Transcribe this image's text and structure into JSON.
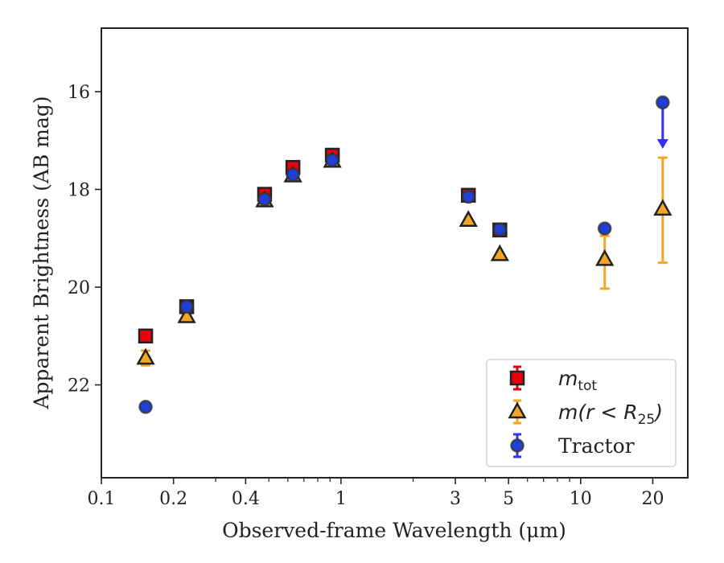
{
  "chart_data": {
    "type": "scatter",
    "xlabel": "Observed-frame Wavelength (μm)",
    "ylabel": "Apparent Brightness (AB mag)",
    "xscale": "log",
    "xlim": [
      0.1,
      28
    ],
    "ylim": [
      23.9,
      14.7
    ],
    "y_inverted": true,
    "x_ticks": [
      {
        "value": 0.1,
        "label": "0.1"
      },
      {
        "value": 0.2,
        "label": "0.2"
      },
      {
        "value": 0.4,
        "label": "0.4"
      },
      {
        "value": 1,
        "label": "1"
      },
      {
        "value": 3,
        "label": "3"
      },
      {
        "value": 5,
        "label": "5"
      },
      {
        "value": 10,
        "label": "10"
      },
      {
        "value": 20,
        "label": "20"
      }
    ],
    "y_ticks": [
      {
        "value": 16,
        "label": "16"
      },
      {
        "value": 18,
        "label": "18"
      },
      {
        "value": 20,
        "label": "20"
      },
      {
        "value": 22,
        "label": "22"
      }
    ],
    "grid": false,
    "legend_position": "bottom-right",
    "series": [
      {
        "name": "m_tot",
        "legend_html": "mtot",
        "marker": "square",
        "color": "#e8000b",
        "errcolor": "#e8000b",
        "points": [
          {
            "x": 0.153,
            "y": 21.0
          },
          {
            "x": 0.227,
            "y": 20.4
          },
          {
            "x": 0.48,
            "y": 18.1
          },
          {
            "x": 0.63,
            "y": 17.55
          },
          {
            "x": 0.92,
            "y": 17.3
          },
          {
            "x": 3.4,
            "y": 18.12
          },
          {
            "x": 4.6,
            "y": 18.83
          }
        ]
      },
      {
        "name": "m(r < R25)",
        "marker": "triangle",
        "color": "#f5a623",
        "errcolor": "#f5a623",
        "points": [
          {
            "x": 0.153,
            "y": 21.45,
            "yerr": 0.15
          },
          {
            "x": 0.227,
            "y": 20.6
          },
          {
            "x": 0.48,
            "y": 18.23
          },
          {
            "x": 0.63,
            "y": 17.72
          },
          {
            "x": 0.92,
            "y": 17.42
          },
          {
            "x": 3.4,
            "y": 18.63
          },
          {
            "x": 4.6,
            "y": 19.33
          },
          {
            "x": 12.6,
            "y": 19.43,
            "yerr_lo": 0.48,
            "yerr_hi": 0.6
          },
          {
            "x": 22.0,
            "y": 18.4,
            "yerr_lo": 1.05,
            "yerr_hi": 1.1
          }
        ]
      },
      {
        "name": "Tractor",
        "marker": "circle",
        "color": "#1f3fd6",
        "errcolor": "#3333ee",
        "points": [
          {
            "x": 0.153,
            "y": 22.45
          },
          {
            "x": 0.227,
            "y": 20.4
          },
          {
            "x": 0.48,
            "y": 18.2
          },
          {
            "x": 0.63,
            "y": 17.7
          },
          {
            "x": 0.92,
            "y": 17.4
          },
          {
            "x": 3.4,
            "y": 18.15
          },
          {
            "x": 4.6,
            "y": 18.82
          },
          {
            "x": 12.6,
            "y": 18.8
          },
          {
            "x": 22.0,
            "y": 16.22,
            "upper_limit": true
          }
        ]
      }
    ],
    "legend": [
      {
        "label": "m",
        "sub": "tot",
        "italic": true
      },
      {
        "label": "m(r < R",
        "sub": "25",
        "suffix": ")",
        "italic": true
      },
      {
        "label": "Tractor",
        "italic": false
      }
    ]
  }
}
